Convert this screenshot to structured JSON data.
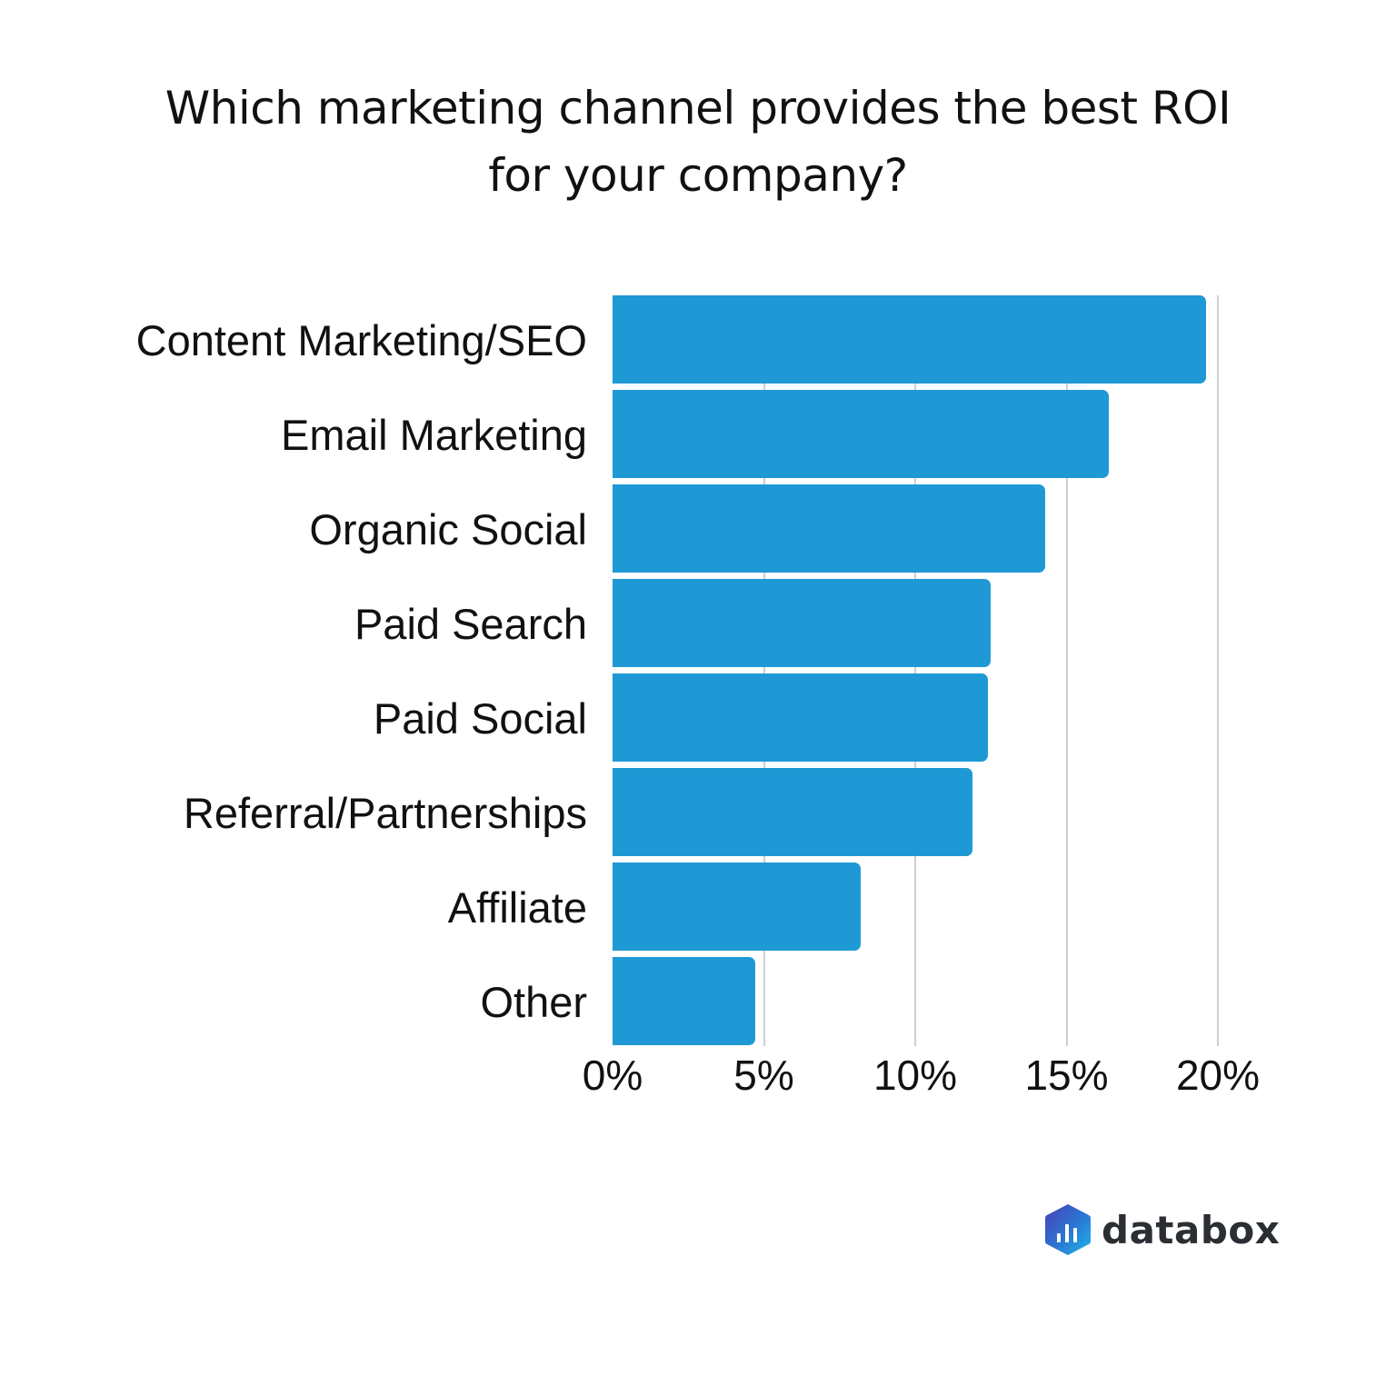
{
  "title": {
    "line1": "Which marketing channel provides the best ROI",
    "line2": "for your company?"
  },
  "chart_data": {
    "type": "bar",
    "orientation": "horizontal",
    "title": "Which marketing channel provides the best ROI for your company?",
    "categories": [
      "Content Marketing/SEO",
      "Email Marketing",
      "Organic Social",
      "Paid Search",
      "Paid Social",
      "Referral/Partnerships",
      "Affiliate",
      "Other"
    ],
    "values": [
      19.6,
      16.4,
      14.3,
      12.5,
      12.4,
      11.9,
      8.2,
      4.7
    ],
    "unit": "%",
    "xlabel": "",
    "ylabel": "",
    "xlim": [
      0,
      20
    ],
    "ticks": [
      "0%",
      "5%",
      "10%",
      "15%",
      "20%"
    ],
    "grid": true,
    "legend": null,
    "bar_color": "#1f99d6"
  },
  "brand": {
    "logo_text": "databox",
    "icon": "databox-hexagon-bars-icon"
  }
}
